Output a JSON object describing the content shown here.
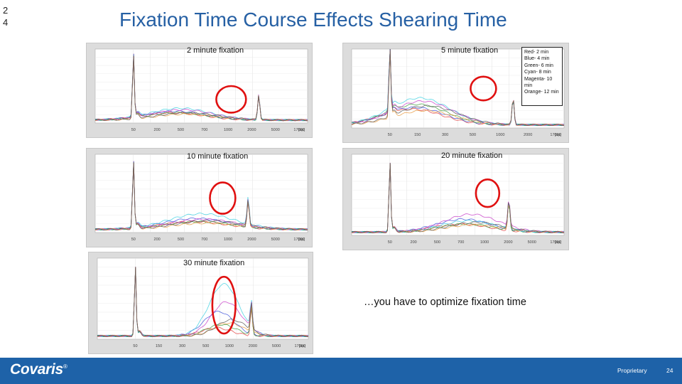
{
  "slide": {
    "number": "24"
  },
  "title": "Fixation Time Course Effects Shearing Time",
  "panels": [
    {
      "label": "2 minute fixation",
      "axis_labels": [
        "50",
        "200",
        "500",
        "700",
        "1000",
        "2000",
        "5000",
        "17000"
      ]
    },
    {
      "label": "5 minute fixation",
      "axis_labels": [
        "50",
        "150",
        "300",
        "500",
        "1000",
        "2000",
        "17000"
      ]
    },
    {
      "label": "10 minute fixation",
      "axis_labels": [
        "50",
        "200",
        "500",
        "700",
        "1000",
        "2000",
        "5000",
        "17000"
      ]
    },
    {
      "label": "20 minute fixation",
      "axis_labels": [
        "50",
        "200",
        "500",
        "700",
        "1000",
        "2000",
        "5000",
        "17000"
      ]
    },
    {
      "label": "30 minute fixation",
      "axis_labels": [
        "50",
        "150",
        "300",
        "500",
        "1000",
        "2000",
        "5000",
        "17000"
      ]
    }
  ],
  "axis_unit": "[bp]",
  "legend": [
    "Red- 2 min",
    "Blue- 4 min",
    "Green- 6 min",
    "Cyan- 8 min",
    "Magenta- 10 min",
    "Orange- 12 min"
  ],
  "note": "…you have to optimize fixation time",
  "footer": {
    "logo": "Covaris",
    "logo_mark": "®",
    "label": "Proprietary",
    "page": "24"
  },
  "colors": {
    "title": "#2660a4",
    "footer": "#1e62a8",
    "highlight": "#e01010"
  }
}
